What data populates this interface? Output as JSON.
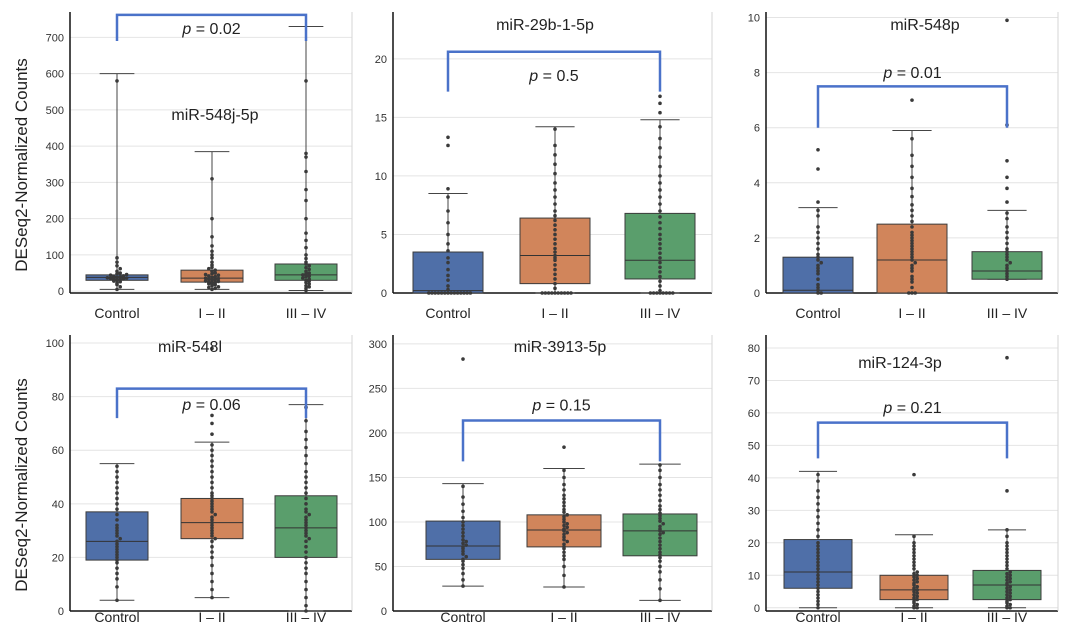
{
  "y_axis_label": "DESeq2-Normalized Counts",
  "chart_data": [
    {
      "type": "box",
      "title": "miR-548j-5p",
      "categories": [
        "Control",
        "I – II",
        "III – IV"
      ],
      "yticks": [
        0,
        100,
        200,
        300,
        400,
        500,
        600,
        700
      ],
      "ylim": [
        -5,
        770
      ],
      "p_label": "p = 0.02",
      "bracket_y": 762,
      "bracket_drop": 690,
      "p_text_y": 710,
      "boxes": [
        {
          "min": 5,
          "q1": 30,
          "median": 38,
          "q3": 45,
          "max": 600,
          "points": [
            5,
            12,
            18,
            22,
            26,
            28,
            30,
            32,
            33,
            34,
            35,
            36,
            37,
            38,
            39,
            40,
            42,
            44,
            46,
            48,
            50,
            55,
            62,
            70,
            80,
            92,
            580
          ]
        },
        {
          "min": 5,
          "q1": 25,
          "median": 36,
          "q3": 58,
          "max": 385,
          "points": [
            5,
            8,
            10,
            12,
            15,
            18,
            20,
            22,
            24,
            25,
            27,
            28,
            30,
            32,
            33,
            35,
            36,
            38,
            40,
            42,
            44,
            46,
            48,
            50,
            55,
            58,
            62,
            66,
            72,
            80,
            92,
            100,
            110,
            125,
            150,
            200,
            310
          ]
        },
        {
          "min": 2,
          "q1": 30,
          "median": 45,
          "q3": 75,
          "max": 730,
          "points": [
            2,
            8,
            12,
            15,
            20,
            24,
            28,
            30,
            33,
            36,
            40,
            42,
            45,
            48,
            50,
            55,
            60,
            65,
            70,
            75,
            80,
            90,
            100,
            120,
            140,
            160,
            200,
            250,
            280,
            330,
            370,
            380,
            580
          ]
        }
      ]
    },
    {
      "type": "box",
      "title": "miR-29b-1-5p",
      "categories": [
        "Control",
        "I – II",
        "III – IV"
      ],
      "yticks": [
        0,
        5,
        10,
        15,
        20
      ],
      "ylim": [
        0,
        24
      ],
      "p_label": "p = 0.5",
      "bracket_y": 20.6,
      "bracket_drop": 17.2,
      "p_text_y": 18.1,
      "boxes": [
        {
          "min": 0,
          "q1": 0,
          "median": 0.2,
          "q3": 3.5,
          "max": 8.5,
          "points": [
            0,
            0,
            0,
            0,
            0,
            0,
            0,
            0,
            0,
            0,
            0,
            0,
            0,
            0,
            0.3,
            0.6,
            1.1,
            1.5,
            2.0,
            2.6,
            3.0,
            3.6,
            4.2,
            5.0,
            6.0,
            7.0,
            8.2,
            8.9,
            12.6,
            13.3
          ]
        },
        {
          "min": 0,
          "q1": 0.8,
          "median": 3.2,
          "q3": 6.4,
          "max": 14.2,
          "points": [
            0,
            0,
            0,
            0,
            0,
            0,
            0,
            0,
            0,
            0,
            0.4,
            0.8,
            1.2,
            1.6,
            2.0,
            2.4,
            2.8,
            3.0,
            3.2,
            3.5,
            3.8,
            4.2,
            4.6,
            5.0,
            5.4,
            5.8,
            6.2,
            6.6,
            7.0,
            7.6,
            8.2,
            8.8,
            9.4,
            10.2,
            11.0,
            11.8,
            12.6,
            14.0
          ]
        },
        {
          "min": 0,
          "q1": 1.2,
          "median": 2.8,
          "q3": 6.8,
          "max": 14.8,
          "points": [
            0,
            0,
            0,
            0,
            0,
            0,
            0,
            0,
            0.2,
            0.6,
            1.0,
            1.4,
            1.8,
            2.2,
            2.6,
            3.0,
            3.4,
            3.8,
            4.2,
            4.6,
            5.0,
            5.5,
            6.0,
            6.5,
            7.0,
            7.6,
            8.2,
            8.8,
            9.4,
            10.0,
            10.8,
            11.6,
            12.4,
            13.2,
            14.2,
            15.4,
            16.2,
            16.8
          ]
        }
      ]
    },
    {
      "type": "box",
      "title": "miR-548p",
      "categories": [
        "Control",
        "I – II",
        "III – IV"
      ],
      "yticks": [
        0,
        2,
        4,
        6,
        8,
        10
      ],
      "ylim": [
        0,
        10.2
      ],
      "p_label": "p = 0.01",
      "bracket_y": 7.5,
      "bracket_drop": 6.0,
      "p_text_y": 7.8,
      "boxes": [
        {
          "min": 0,
          "q1": 0,
          "median": 0.1,
          "q3": 1.3,
          "max": 3.1,
          "points": [
            0,
            0,
            0.1,
            0.2,
            0.3,
            0.5,
            0.7,
            0.8,
            0.9,
            1.0,
            1.1,
            1.2,
            1.3,
            1.4,
            1.6,
            1.8,
            2.0,
            2.2,
            2.4,
            2.8,
            3.0,
            3.3,
            4.5,
            5.2
          ]
        },
        {
          "min": 0,
          "q1": 0,
          "median": 1.2,
          "q3": 2.5,
          "max": 5.9,
          "points": [
            0,
            0,
            0,
            0.2,
            0.4,
            0.5,
            0.6,
            0.8,
            0.9,
            1.0,
            1.1,
            1.2,
            1.3,
            1.4,
            1.5,
            1.6,
            1.7,
            1.8,
            1.9,
            2.0,
            2.1,
            2.2,
            2.4,
            2.6,
            2.8,
            3.0,
            3.2,
            3.5,
            3.8,
            4.2,
            4.6,
            5.0,
            5.6,
            7.0
          ]
        },
        {
          "min": 0.5,
          "q1": 0.5,
          "median": 0.8,
          "q3": 1.5,
          "max": 3.0,
          "points": [
            0.5,
            0.6,
            0.7,
            0.8,
            0.9,
            1.0,
            1.1,
            1.2,
            1.3,
            1.4,
            1.5,
            1.6,
            1.8,
            2.0,
            2.2,
            2.4,
            2.7,
            2.9,
            3.3,
            3.8,
            4.2,
            4.8,
            6.1,
            9.9
          ]
        }
      ]
    },
    {
      "type": "box",
      "title": "miR-548l",
      "categories": [
        "Control",
        "I – II",
        "III – IV"
      ],
      "yticks": [
        0,
        20,
        40,
        60,
        80,
        100
      ],
      "ylim": [
        0,
        103
      ],
      "p_label": "p = 0.06",
      "bracket_y": 83,
      "bracket_drop": 72,
      "p_text_y": 75,
      "boxes": [
        {
          "min": 4,
          "q1": 19,
          "median": 26,
          "q3": 37,
          "max": 55,
          "points": [
            4,
            9,
            12,
            14,
            16,
            18,
            19,
            20,
            21,
            22,
            23,
            24,
            25,
            26,
            27,
            28,
            29,
            30,
            31,
            32,
            34,
            36,
            38,
            40,
            42,
            44,
            46,
            48,
            50,
            52,
            54
          ]
        },
        {
          "min": 5,
          "q1": 27,
          "median": 33,
          "q3": 42,
          "max": 63,
          "points": [
            5,
            8,
            11,
            14,
            17,
            20,
            22,
            24,
            26,
            27,
            28,
            29,
            30,
            31,
            32,
            33,
            34,
            35,
            36,
            37,
            38,
            39,
            40,
            41,
            42,
            43,
            44,
            46,
            48,
            50,
            52,
            54,
            56,
            58,
            60,
            62,
            66,
            70,
            73,
            98
          ]
        },
        {
          "min": 0,
          "q1": 20,
          "median": 31,
          "q3": 43,
          "max": 77,
          "points": [
            0,
            2,
            5,
            8,
            11,
            14,
            16,
            18,
            20,
            22,
            24,
            26,
            27,
            28,
            29,
            30,
            31,
            32,
            33,
            34,
            35,
            36,
            37,
            38,
            40,
            42,
            44,
            46,
            48,
            50,
            52,
            55,
            58,
            61,
            64,
            67,
            71,
            76
          ]
        }
      ]
    },
    {
      "type": "box",
      "title": "miR-3913-5p",
      "categories": [
        "Control",
        "I – II",
        "III – IV"
      ],
      "yticks": [
        0,
        50,
        100,
        150,
        200,
        250,
        300
      ],
      "ylim": [
        0,
        310
      ],
      "p_label": "p = 0.15",
      "bracket_y": 214,
      "bracket_drop": 168,
      "p_text_y": 225,
      "boxes": [
        {
          "min": 28,
          "q1": 58,
          "median": 73,
          "q3": 101,
          "max": 143,
          "points": [
            28,
            35,
            42,
            48,
            52,
            56,
            58,
            61,
            64,
            67,
            70,
            72,
            74,
            76,
            78,
            80,
            84,
            88,
            92,
            96,
            100,
            105,
            112,
            120,
            128,
            140,
            283
          ]
        },
        {
          "min": 27,
          "q1": 72,
          "median": 91,
          "q3": 108,
          "max": 160,
          "points": [
            27,
            40,
            50,
            58,
            62,
            66,
            70,
            72,
            75,
            78,
            80,
            83,
            86,
            88,
            90,
            92,
            94,
            96,
            98,
            100,
            103,
            106,
            108,
            111,
            114,
            118,
            122,
            126,
            130,
            136,
            142,
            150,
            158,
            184
          ]
        },
        {
          "min": 12,
          "q1": 62,
          "median": 90,
          "q3": 109,
          "max": 165,
          "points": [
            12,
            25,
            35,
            44,
            50,
            56,
            60,
            63,
            66,
            70,
            74,
            78,
            82,
            86,
            88,
            90,
            92,
            95,
            98,
            101,
            104,
            107,
            110,
            114,
            118,
            124,
            130,
            136,
            142,
            150,
            158,
            164
          ]
        }
      ]
    },
    {
      "type": "box",
      "title": "miR-124-3p",
      "categories": [
        "Control",
        "I – II",
        "III – IV"
      ],
      "yticks": [
        0,
        10,
        20,
        30,
        40,
        50,
        60,
        70,
        80
      ],
      "ylim": [
        -1,
        84
      ],
      "p_label": "p = 0.21",
      "bracket_y": 57,
      "bracket_drop": 46,
      "p_text_y": 60,
      "boxes": [
        {
          "min": 0,
          "q1": 6,
          "median": 11,
          "q3": 21,
          "max": 42,
          "points": [
            0,
            1,
            2,
            3,
            4,
            5,
            6,
            7,
            8,
            9,
            10,
            11,
            12,
            13,
            14,
            15,
            16,
            17,
            18,
            19,
            20,
            22,
            24,
            26,
            28,
            30,
            32,
            34,
            36,
            39,
            41
          ]
        },
        {
          "min": 0,
          "q1": 2.5,
          "median": 5.5,
          "q3": 10,
          "max": 22.5,
          "points": [
            0,
            0,
            0.5,
            1,
            1.5,
            2,
            2.5,
            3,
            3.5,
            4,
            4.5,
            5,
            5.5,
            6,
            6.5,
            7,
            7.5,
            8,
            8.5,
            9,
            9.5,
            10,
            10.5,
            11,
            12,
            13,
            14,
            15,
            16,
            17,
            18,
            19,
            20,
            22,
            41
          ]
        },
        {
          "min": 0,
          "q1": 2.5,
          "median": 7,
          "q3": 11.5,
          "max": 24,
          "points": [
            0,
            0,
            0.5,
            1,
            1.5,
            2,
            2.5,
            3,
            3.5,
            4,
            4.5,
            5,
            5.5,
            6,
            6.5,
            7,
            7.5,
            8,
            8.5,
            9,
            9.5,
            10,
            10.5,
            11,
            12,
            13,
            14,
            15,
            16,
            17,
            18,
            19,
            20,
            22,
            24,
            36,
            77
          ]
        }
      ]
    }
  ]
}
